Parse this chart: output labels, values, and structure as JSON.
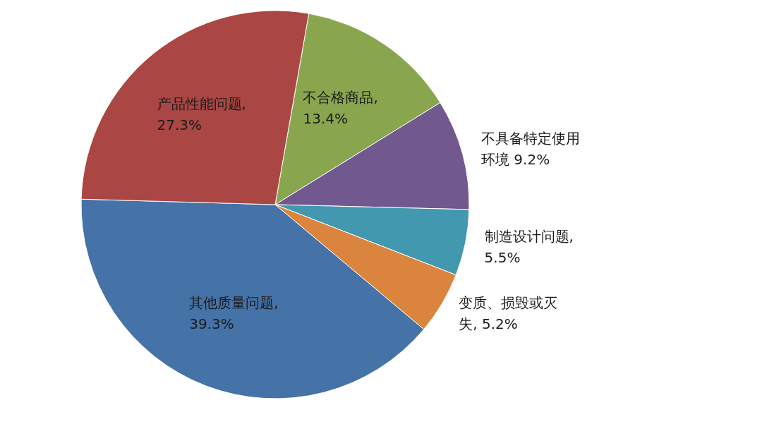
{
  "chart_data": {
    "type": "pie",
    "categories": [
      "不合格商品",
      "不具备特定使用环境",
      "制造设计问题",
      "变质、损毁或灭失",
      "其他质量问题",
      "产品性能问题"
    ],
    "values": [
      13.4,
      9.2,
      5.5,
      5.2,
      39.3,
      27.3
    ],
    "colors": [
      "#89a54e",
      "#71588f",
      "#4198af",
      "#db843d",
      "#4572a7",
      "#aa4643"
    ],
    "value_labels": [
      ", 13.4%",
      " 9.2%",
      ", 5.5%",
      ", 5.2%",
      ", 39.3%",
      ", 27.3%"
    ]
  }
}
